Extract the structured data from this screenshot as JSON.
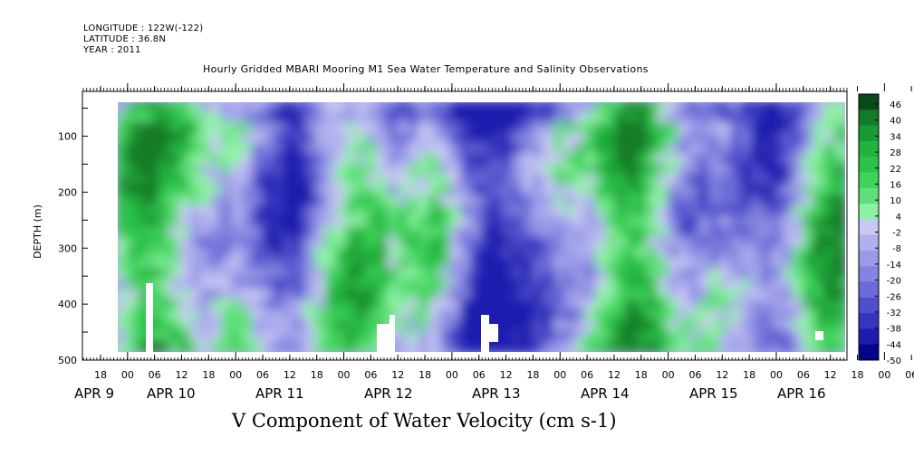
{
  "header": {
    "longitude": "LONGITUDE : 122W(-122)",
    "latitude": "LATITUDE : 36.8N",
    "year": "YEAR : 2011"
  },
  "chart_data": {
    "type": "heatmap",
    "title": "Hourly Gridded MBARI Mooring M1 Sea Water Temperature and Salinity Observations",
    "xlabel": "",
    "ylabel": "DEPTH (m)",
    "colorbar_label": "V Component of Water Velocity (cm s-1)",
    "y_ticks": [
      100,
      200,
      300,
      400,
      500
    ],
    "ylim": [
      500,
      20
    ],
    "x_tick_labels": [
      "18",
      "00",
      "06",
      "12",
      "18",
      "00",
      "06",
      "12",
      "18",
      "00",
      "06",
      "12",
      "18",
      "00",
      "06",
      "12",
      "18",
      "00",
      "06",
      "12",
      "18",
      "00",
      "06",
      "12",
      "18",
      "00",
      "06",
      "12",
      "18",
      "00",
      "06",
      "12"
    ],
    "date_labels": [
      "APR  9",
      "APR 10",
      "APR 11",
      "APR 12",
      "APR 13",
      "APR 14",
      "APR 15",
      "APR 16"
    ],
    "colorbar_ticks": [
      46,
      40,
      34,
      28,
      22,
      16,
      10,
      4,
      -2,
      -8,
      -14,
      -20,
      -26,
      -32,
      -38,
      -44,
      -50
    ],
    "colorbar_colors": [
      "#0a4a1a",
      "#137a28",
      "#1a9a34",
      "#22b23e",
      "#2cc24a",
      "#3fd35b",
      "#5fe07a",
      "#8ef0a5",
      "#c8c8f4",
      "#b0b0ee",
      "#9a9ae8",
      "#8484e0",
      "#6a6ad8",
      "#4f4fcc",
      "#3535bf",
      "#1c1cae",
      "#05058a"
    ]
  }
}
